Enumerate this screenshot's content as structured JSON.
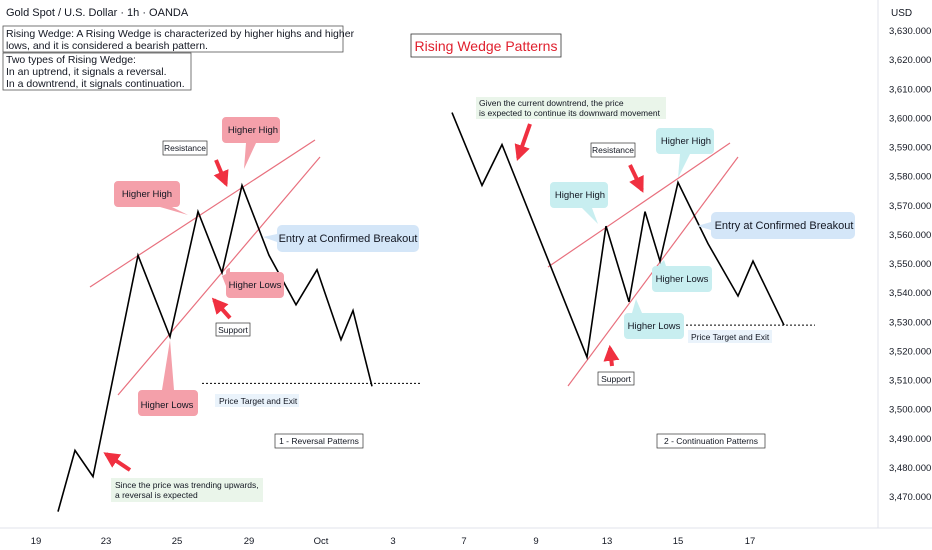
{
  "header": {
    "symbol_title": "Gold Spot / U.S. Dollar · 1h · OANDA",
    "currency": "USD"
  },
  "chart_title": "Rising Wedge Patterns",
  "notes": {
    "definition": [
      "Rising Wedge: A Rising Wedge is characterized by higher highs and higher",
      " lows, and it is considered a bearish pattern."
    ],
    "types": [
      "Two types of Rising Wedge:",
      "In an uptrend, it signals a reversal.",
      "In a downtrend, it signals continuation."
    ]
  },
  "colors": {
    "price_line": "#000000",
    "wedge_line": "#e8707e",
    "red_label_bg": "#f4a0aa",
    "teal_label_bg": "#c8eef0",
    "blue_label_bg": "#d4e6f8",
    "arrow": "#f03040",
    "title_color": "#e0202e"
  },
  "chart_data": {
    "type": "line",
    "ylabel": "USD",
    "y_ticks": [
      3470,
      3480,
      3490,
      3500,
      3510,
      3520,
      3530,
      3540,
      3550,
      3560,
      3570,
      3580,
      3590,
      3600,
      3610,
      3620,
      3630
    ],
    "x_ticks": [
      "19",
      "23",
      "25",
      "29",
      "Oct",
      "3",
      "7",
      "9",
      "13",
      "15",
      "17"
    ],
    "panels": [
      {
        "name": "1 - Reversal Patterns",
        "price_path": [
          3465,
          3486,
          3477,
          3553,
          3525,
          3568,
          3547,
          3577,
          3553,
          3536,
          3548,
          3524,
          3534,
          3508
        ],
        "price_target": 3509,
        "labels": {
          "higher_high_1": "Higher High",
          "higher_high_2": "Higher High",
          "higher_lows_1": "Higher Lows",
          "higher_lows_2": "Higher Lows",
          "resistance": "Resistance",
          "support": "Support",
          "entry": "Entry at Confirmed Breakout",
          "target": "Price Target and Exit",
          "note": [
            "Since the price was trending upwards,",
            "a reversal is expected"
          ]
        }
      },
      {
        "name": "2 - Continuation Patterns",
        "price_path": [
          3602,
          3577,
          3591,
          3518,
          3563,
          3537,
          3568,
          3551,
          3578,
          3557,
          3539,
          3551,
          3529
        ],
        "price_target": 3529,
        "labels": {
          "higher_high_1": "Higher High",
          "higher_high_2": "Higher High",
          "higher_lows_1": "Higher Lows",
          "higher_lows_2": "Higher Lows",
          "resistance": "Resistance",
          "support": "Support",
          "entry": "Entry at Confirmed Breakout",
          "target": "Price Target and Exit",
          "note": [
            "Given the current downtrend, the price",
            " is expected to continue its downward movement"
          ]
        }
      }
    ]
  }
}
